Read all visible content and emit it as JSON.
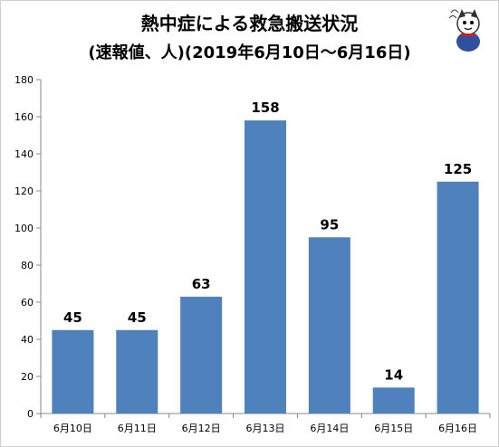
{
  "chart_data": {
    "type": "bar",
    "title": "熱中症による救急搬送状況",
    "subtitle": "(速報値、人)(2019年6月10日～6月16日)",
    "categories": [
      "6月10日",
      "6月11日",
      "6月12日",
      "6月13日",
      "6月14日",
      "6月15日",
      "6月16日"
    ],
    "values": [
      45,
      45,
      63,
      158,
      95,
      14,
      125
    ],
    "data_labels": [
      "45",
      "45",
      "63",
      "158",
      "95",
      "14",
      "125"
    ],
    "ylim": [
      0,
      180
    ],
    "yticks": [
      0,
      20,
      40,
      60,
      80,
      100,
      120,
      140,
      160,
      180
    ],
    "ytick_labels": [
      "0",
      "20",
      "40",
      "60",
      "80",
      "100",
      "120",
      "140",
      "160",
      "180"
    ],
    "xlabel": "",
    "ylabel": "",
    "grid": false,
    "legend": "none",
    "bar_color": "#4f81bd",
    "axis_color": "#888888"
  }
}
